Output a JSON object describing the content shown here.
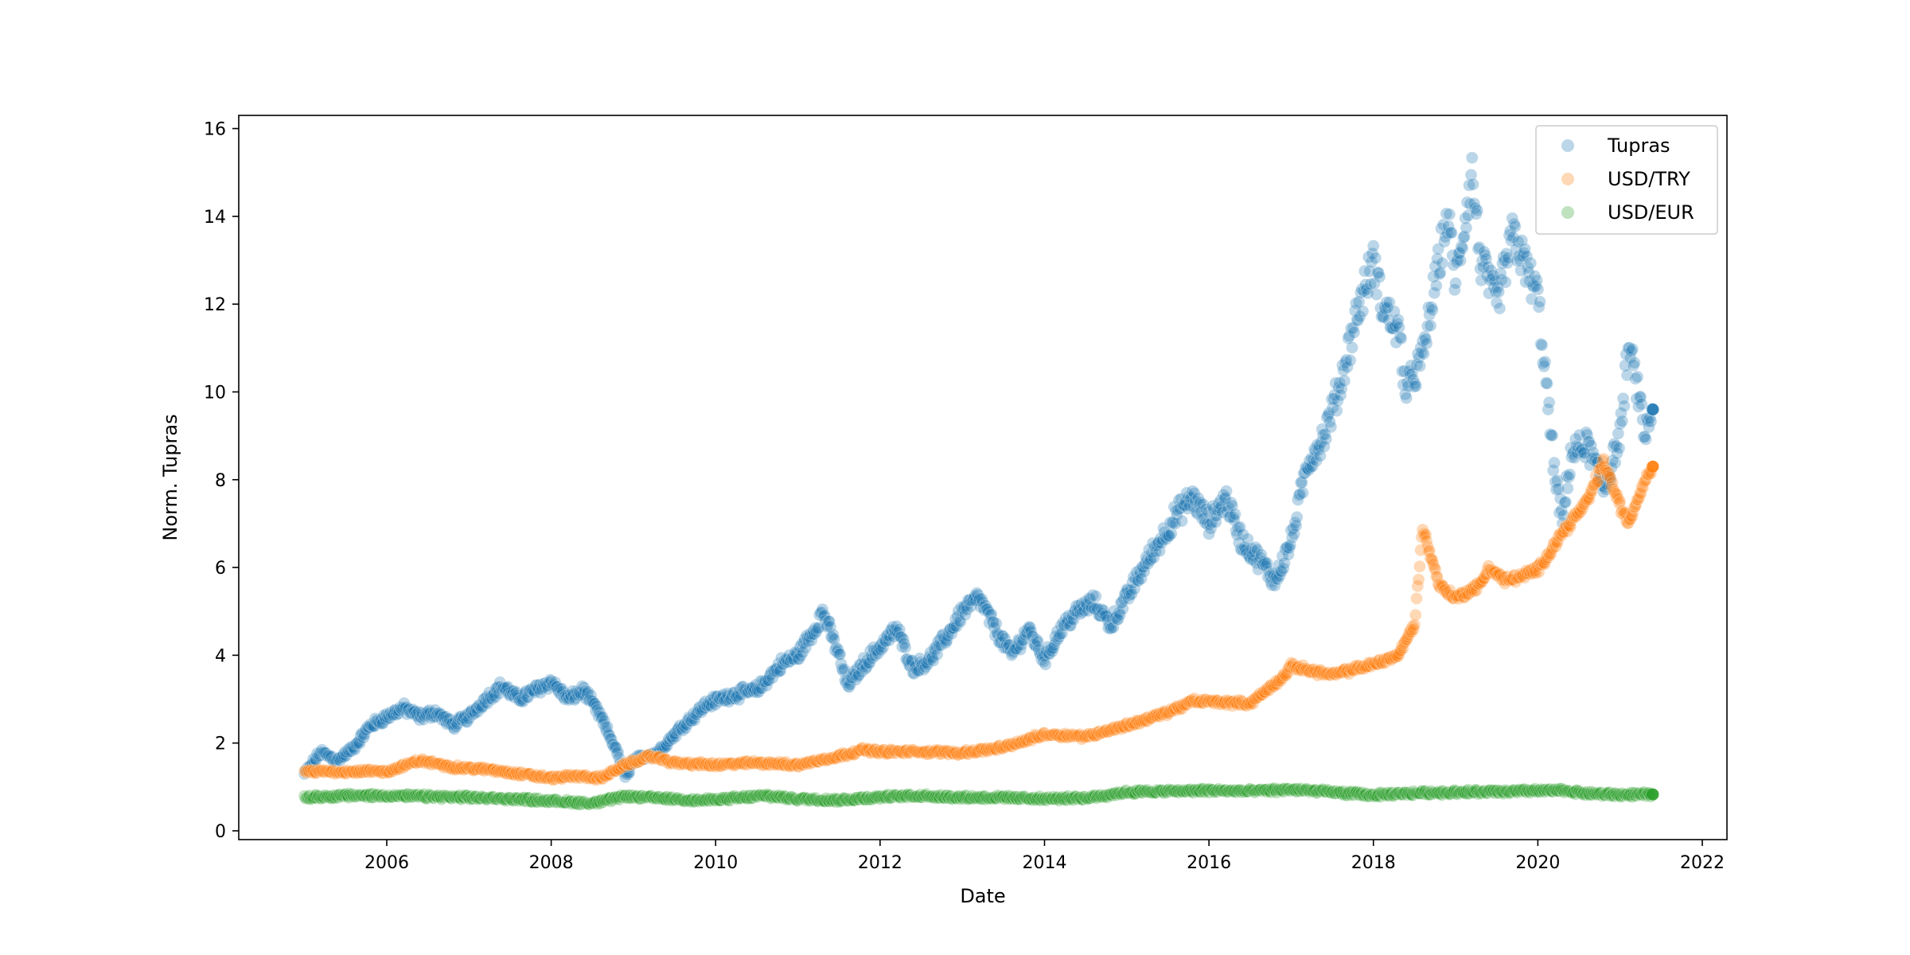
{
  "chart_data": {
    "type": "scatter",
    "title": "",
    "xlabel": "Date",
    "ylabel": "Norm. Tupras",
    "xlim": [
      2004.2,
      2022.3
    ],
    "ylim": [
      -0.2,
      16.3
    ],
    "x_ticks": [
      2006,
      2008,
      2010,
      2012,
      2014,
      2016,
      2018,
      2020,
      2022
    ],
    "y_ticks": [
      0,
      2,
      4,
      6,
      8,
      10,
      12,
      14,
      16
    ],
    "grid": false,
    "legend_position": "top-right",
    "series": [
      {
        "name": "Tupras",
        "color": "#1f77b4",
        "points": [
          [
            2005.0,
            1.3
          ],
          [
            2005.2,
            1.8
          ],
          [
            2005.4,
            1.6
          ],
          [
            2005.6,
            1.9
          ],
          [
            2005.8,
            2.4
          ],
          [
            2006.0,
            2.6
          ],
          [
            2006.2,
            2.8
          ],
          [
            2006.4,
            2.6
          ],
          [
            2006.6,
            2.7
          ],
          [
            2006.8,
            2.4
          ],
          [
            2007.0,
            2.6
          ],
          [
            2007.2,
            3.0
          ],
          [
            2007.4,
            3.3
          ],
          [
            2007.6,
            3.0
          ],
          [
            2007.8,
            3.2
          ],
          [
            2008.0,
            3.4
          ],
          [
            2008.2,
            3.0
          ],
          [
            2008.4,
            3.2
          ],
          [
            2008.6,
            2.6
          ],
          [
            2008.8,
            1.8
          ],
          [
            2008.9,
            1.2
          ],
          [
            2009.0,
            1.6
          ],
          [
            2009.3,
            1.8
          ],
          [
            2009.6,
            2.4
          ],
          [
            2009.9,
            2.9
          ],
          [
            2010.2,
            3.1
          ],
          [
            2010.5,
            3.2
          ],
          [
            2010.8,
            3.8
          ],
          [
            2011.0,
            4.0
          ],
          [
            2011.2,
            4.6
          ],
          [
            2011.3,
            5.0
          ],
          [
            2011.5,
            4.0
          ],
          [
            2011.6,
            3.3
          ],
          [
            2011.8,
            3.8
          ],
          [
            2012.0,
            4.2
          ],
          [
            2012.2,
            4.6
          ],
          [
            2012.4,
            3.7
          ],
          [
            2012.6,
            3.9
          ],
          [
            2012.8,
            4.4
          ],
          [
            2013.0,
            5.0
          ],
          [
            2013.2,
            5.3
          ],
          [
            2013.4,
            4.6
          ],
          [
            2013.6,
            4.0
          ],
          [
            2013.8,
            4.6
          ],
          [
            2014.0,
            3.9
          ],
          [
            2014.2,
            4.6
          ],
          [
            2014.4,
            5.0
          ],
          [
            2014.6,
            5.2
          ],
          [
            2014.8,
            4.7
          ],
          [
            2015.0,
            5.3
          ],
          [
            2015.2,
            6.0
          ],
          [
            2015.4,
            6.6
          ],
          [
            2015.6,
            7.2
          ],
          [
            2015.8,
            7.6
          ],
          [
            2016.0,
            7.0
          ],
          [
            2016.2,
            7.6
          ],
          [
            2016.4,
            6.6
          ],
          [
            2016.6,
            6.2
          ],
          [
            2016.8,
            5.7
          ],
          [
            2017.0,
            6.6
          ],
          [
            2017.2,
            8.4
          ],
          [
            2017.4,
            9.0
          ],
          [
            2017.6,
            10.2
          ],
          [
            2017.8,
            11.8
          ],
          [
            2018.0,
            13.0
          ],
          [
            2018.1,
            12.0
          ],
          [
            2018.3,
            11.4
          ],
          [
            2018.4,
            10.0
          ],
          [
            2018.6,
            10.8
          ],
          [
            2018.8,
            13.0
          ],
          [
            2018.9,
            14.0
          ],
          [
            2019.0,
            12.5
          ],
          [
            2019.2,
            15.0
          ],
          [
            2019.3,
            13.0
          ],
          [
            2019.5,
            12.0
          ],
          [
            2019.7,
            13.6
          ],
          [
            2019.9,
            12.6
          ],
          [
            2020.0,
            12.2
          ],
          [
            2020.1,
            10.2
          ],
          [
            2020.2,
            8.2
          ],
          [
            2020.3,
            7.0
          ],
          [
            2020.4,
            8.6
          ],
          [
            2020.6,
            8.8
          ],
          [
            2020.8,
            7.8
          ],
          [
            2021.0,
            9.0
          ],
          [
            2021.1,
            11.0
          ],
          [
            2021.2,
            10.2
          ],
          [
            2021.3,
            9.0
          ],
          [
            2021.4,
            9.6
          ]
        ]
      },
      {
        "name": "USD/TRY",
        "color": "#ff7f0e",
        "points": [
          [
            2005.0,
            1.35
          ],
          [
            2005.5,
            1.35
          ],
          [
            2006.0,
            1.35
          ],
          [
            2006.4,
            1.6
          ],
          [
            2006.8,
            1.45
          ],
          [
            2007.2,
            1.4
          ],
          [
            2007.6,
            1.3
          ],
          [
            2008.0,
            1.2
          ],
          [
            2008.3,
            1.25
          ],
          [
            2008.6,
            1.2
          ],
          [
            2008.9,
            1.5
          ],
          [
            2009.2,
            1.7
          ],
          [
            2009.5,
            1.55
          ],
          [
            2010.0,
            1.5
          ],
          [
            2010.5,
            1.55
          ],
          [
            2011.0,
            1.5
          ],
          [
            2011.5,
            1.7
          ],
          [
            2011.8,
            1.85
          ],
          [
            2012.0,
            1.8
          ],
          [
            2012.5,
            1.8
          ],
          [
            2013.0,
            1.78
          ],
          [
            2013.5,
            1.9
          ],
          [
            2014.0,
            2.2
          ],
          [
            2014.5,
            2.15
          ],
          [
            2015.0,
            2.4
          ],
          [
            2015.5,
            2.7
          ],
          [
            2015.8,
            2.95
          ],
          [
            2016.0,
            2.95
          ],
          [
            2016.5,
            2.9
          ],
          [
            2016.9,
            3.5
          ],
          [
            2017.0,
            3.75
          ],
          [
            2017.5,
            3.55
          ],
          [
            2018.0,
            3.8
          ],
          [
            2018.3,
            4.0
          ],
          [
            2018.5,
            4.7
          ],
          [
            2018.6,
            6.9
          ],
          [
            2018.8,
            5.6
          ],
          [
            2019.0,
            5.3
          ],
          [
            2019.3,
            5.6
          ],
          [
            2019.4,
            6.0
          ],
          [
            2019.6,
            5.7
          ],
          [
            2019.8,
            5.8
          ],
          [
            2020.0,
            5.95
          ],
          [
            2020.3,
            6.8
          ],
          [
            2020.6,
            7.5
          ],
          [
            2020.8,
            8.4
          ],
          [
            2021.0,
            7.4
          ],
          [
            2021.1,
            7.0
          ],
          [
            2021.3,
            8.0
          ],
          [
            2021.4,
            8.3
          ]
        ]
      },
      {
        "name": "USD/EUR",
        "color": "#2ca02c",
        "points": [
          [
            2005.0,
            0.76
          ],
          [
            2005.5,
            0.8
          ],
          [
            2006.0,
            0.8
          ],
          [
            2006.5,
            0.78
          ],
          [
            2007.0,
            0.76
          ],
          [
            2007.5,
            0.73
          ],
          [
            2008.0,
            0.68
          ],
          [
            2008.5,
            0.63
          ],
          [
            2008.9,
            0.78
          ],
          [
            2009.3,
            0.75
          ],
          [
            2009.8,
            0.69
          ],
          [
            2010.3,
            0.75
          ],
          [
            2010.6,
            0.8
          ],
          [
            2011.0,
            0.73
          ],
          [
            2011.5,
            0.7
          ],
          [
            2012.0,
            0.77
          ],
          [
            2012.5,
            0.8
          ],
          [
            2013.0,
            0.76
          ],
          [
            2013.5,
            0.76
          ],
          [
            2014.0,
            0.73
          ],
          [
            2014.5,
            0.75
          ],
          [
            2015.0,
            0.88
          ],
          [
            2015.5,
            0.9
          ],
          [
            2016.0,
            0.92
          ],
          [
            2016.5,
            0.9
          ],
          [
            2017.0,
            0.94
          ],
          [
            2017.5,
            0.88
          ],
          [
            2018.0,
            0.81
          ],
          [
            2018.5,
            0.86
          ],
          [
            2019.0,
            0.88
          ],
          [
            2019.5,
            0.89
          ],
          [
            2020.0,
            0.91
          ],
          [
            2020.3,
            0.92
          ],
          [
            2020.6,
            0.85
          ],
          [
            2021.0,
            0.82
          ],
          [
            2021.4,
            0.83
          ]
        ]
      }
    ]
  }
}
